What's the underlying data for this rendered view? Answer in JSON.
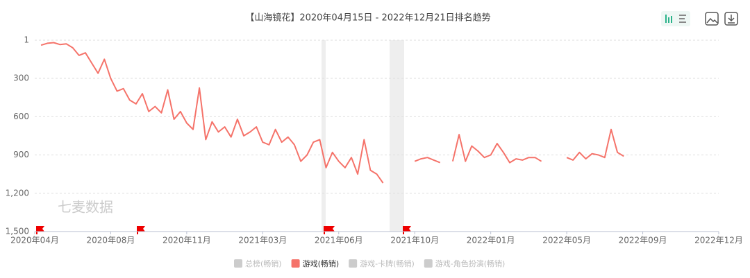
{
  "chart_data": {
    "type": "line",
    "title": "【山海镜花】2020年04月15日 - 2022年12月21日排名趋势",
    "watermark": "七麦数据",
    "categories": [
      "2020年04月",
      null,
      null,
      null,
      null,
      null,
      null,
      null,
      null,
      null,
      null,
      null,
      "2020年08月",
      null,
      null,
      null,
      null,
      null,
      null,
      null,
      null,
      null,
      null,
      null,
      "2020年11月",
      null,
      null,
      null,
      null,
      null,
      null,
      null,
      null,
      null,
      null,
      null,
      "2021年03月",
      null,
      null,
      null,
      null,
      null,
      null,
      null,
      null,
      null,
      null,
      null,
      "2021年06月",
      null,
      null,
      null,
      null,
      null,
      null,
      null,
      null,
      null,
      null,
      null,
      "2021年10月",
      null,
      null,
      null,
      null,
      null,
      null,
      null,
      null,
      null,
      null,
      null,
      "2022年01月",
      null,
      null,
      null,
      null,
      null,
      null,
      null,
      null,
      null,
      null,
      null,
      "2022年05月",
      null,
      null,
      null,
      null,
      null,
      null,
      null,
      null,
      null,
      null,
      null,
      "2022年09月",
      null,
      null,
      null,
      null,
      null,
      null,
      null,
      null,
      null,
      null,
      null,
      "2022年12月"
    ],
    "series": [
      {
        "name": "游戏(畅销)",
        "color": "#f5736a",
        "values": [
          null,
          40,
          25,
          20,
          35,
          30,
          60,
          120,
          100,
          180,
          260,
          150,
          300,
          400,
          380,
          470,
          500,
          420,
          560,
          520,
          570,
          390,
          620,
          560,
          650,
          700,
          375,
          780,
          640,
          720,
          680,
          760,
          620,
          750,
          720,
          680,
          800,
          820,
          700,
          800,
          760,
          820,
          950,
          900,
          800,
          780,
          1000,
          880,
          950,
          1000,
          920,
          1050,
          780,
          1020,
          1050,
          1120,
          null,
          null,
          null,
          null,
          950,
          930,
          920,
          940,
          960,
          null,
          950,
          740,
          950,
          830,
          870,
          920,
          900,
          810,
          880,
          960,
          930,
          940,
          920,
          920,
          950,
          null,
          null,
          null,
          920,
          940,
          880,
          930,
          890,
          900,
          920,
          700,
          880,
          910,
          null,
          null,
          null,
          null,
          null,
          null,
          null,
          null,
          null,
          null,
          null,
          null,
          null,
          null,
          null
        ]
      }
    ],
    "legend": [
      {
        "name": "总榜(畅销)",
        "color": "#cccccc"
      },
      {
        "name": "游戏(畅销)",
        "color": "#f5736a"
      },
      {
        "name": "游戏-卡牌(畅销)",
        "color": "#cccccc"
      },
      {
        "name": "游戏-角色扮演(畅销)",
        "color": "#cccccc"
      }
    ],
    "ylim": [
      1,
      1500
    ],
    "y_inverted": true,
    "yticks": [
      1,
      300,
      600,
      900,
      {
        "value": 1200,
        "label": "1,200"
      },
      {
        "value": 1500,
        "label": "1,500"
      }
    ],
    "grid": true
  }
}
